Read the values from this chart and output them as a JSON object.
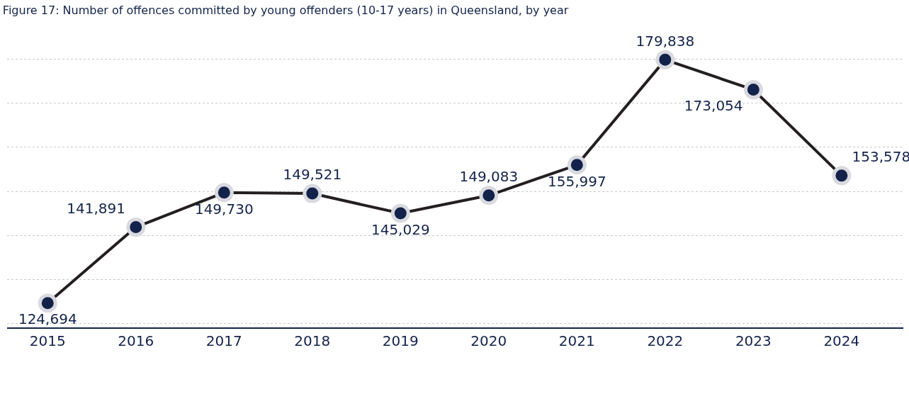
{
  "chart_data": {
    "type": "line",
    "title": "Figure 17: Number of offences committed by young offenders (10-17 years) in Queensland, by year",
    "categories": [
      "2015",
      "2016",
      "2017",
      "2018",
      "2019",
      "2020",
      "2021",
      "2022",
      "2023",
      "2024"
    ],
    "series": [
      {
        "color": "#231f20",
        "values": [
          124694,
          141891,
          149730,
          149521,
          145029,
          149083,
          155997,
          179838,
          173054,
          153578
        ],
        "value_labels": [
          "124,694",
          "141,891",
          "149,730",
          "149,521",
          "145,029",
          "149,083",
          "155,997",
          "179,838",
          "173,054",
          "153,578"
        ]
      }
    ],
    "grid": "y",
    "marker": "circle",
    "line_style": "solid",
    "tick_labels": "x"
  }
}
